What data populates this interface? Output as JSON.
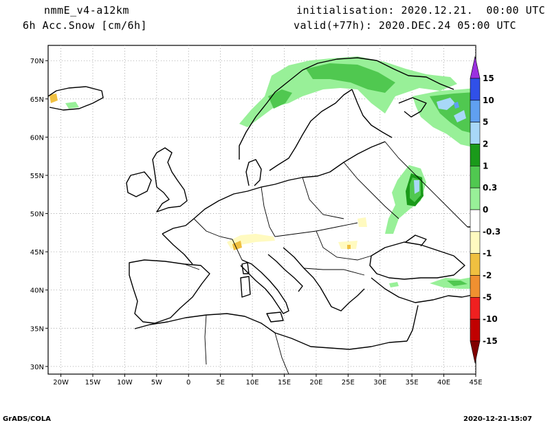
{
  "header": {
    "model": "nmmE_v4-a12km",
    "field": "6h Acc.Snow [cm/6h]",
    "init": "initialisation: 2020.12.21.  00:00 UTC",
    "valid": "valid(+77h): 2020.DEC.24 05:00 UTC"
  },
  "footer": {
    "left": "GrADS/COLA",
    "right": "2020-12-21-15:07"
  },
  "map": {
    "lon_range": [
      -22,
      45
    ],
    "lat_range": [
      29,
      72
    ],
    "lon_ticks": [
      {
        "v": -20,
        "label": "20W"
      },
      {
        "v": -15,
        "label": "15W"
      },
      {
        "v": -10,
        "label": "10W"
      },
      {
        "v": -5,
        "label": "5W"
      },
      {
        "v": 0,
        "label": "0"
      },
      {
        "v": 5,
        "label": "5E"
      },
      {
        "v": 10,
        "label": "10E"
      },
      {
        "v": 15,
        "label": "15E"
      },
      {
        "v": 20,
        "label": "20E"
      },
      {
        "v": 25,
        "label": "25E"
      },
      {
        "v": 30,
        "label": "30E"
      },
      {
        "v": 35,
        "label": "35E"
      },
      {
        "v": 40,
        "label": "40E"
      },
      {
        "v": 45,
        "label": "45E"
      }
    ],
    "lat_ticks": [
      {
        "v": 30,
        "label": "30N"
      },
      {
        "v": 35,
        "label": "35N"
      },
      {
        "v": 40,
        "label": "40N"
      },
      {
        "v": 45,
        "label": "45N"
      },
      {
        "v": 50,
        "label": "50N"
      },
      {
        "v": 55,
        "label": "55N"
      },
      {
        "v": 60,
        "label": "60N"
      },
      {
        "v": 65,
        "label": "65N"
      },
      {
        "v": 70,
        "label": "70N"
      }
    ],
    "colorbar": {
      "labels": [
        "15",
        "10",
        "5",
        "2",
        "1",
        "0.3",
        "0",
        "-0.3",
        "-1",
        "-2",
        "-5",
        "-10",
        "-15"
      ],
      "colors": [
        "#9b30e0",
        "#3050e8",
        "#60a0f0",
        "#a8d8f8",
        "#1a9a1a",
        "#50c850",
        "#98f098",
        "#ffffff",
        "#fffac0",
        "#f0c040",
        "#f09030",
        "#f02020",
        "#c00000",
        "#800000"
      ]
    }
  }
}
